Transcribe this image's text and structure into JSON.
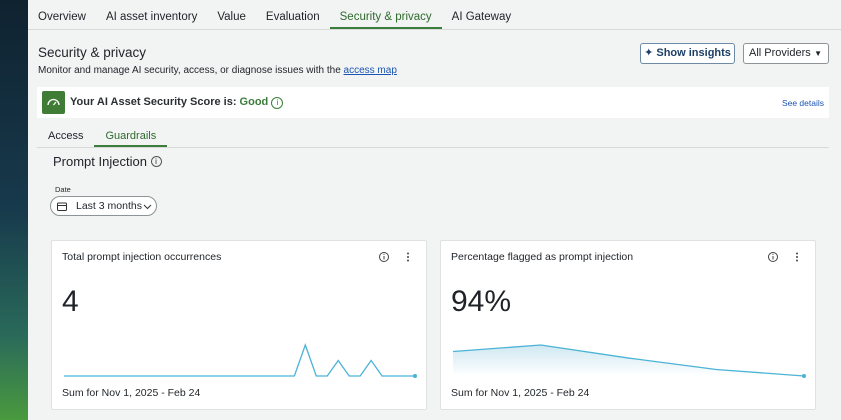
{
  "nav": {
    "tabs": [
      "Overview",
      "AI asset inventory",
      "Value",
      "Evaluation",
      "Security & privacy",
      "AI Gateway"
    ],
    "active": 4
  },
  "header": {
    "title": "Security & privacy",
    "subtitle": "Monitor and manage AI security, access, or diagnose issues with the",
    "link": "access map",
    "insights_button": "Show insights",
    "provider_select": "All Providers"
  },
  "score": {
    "label": "Your AI Asset Security Score is:",
    "value": "Good",
    "details": "See details"
  },
  "subtabs": {
    "tabs": [
      "Access",
      "Guardrails"
    ],
    "active": 1
  },
  "section": {
    "title": "Prompt Injection",
    "date_label": "Date",
    "date_value": "Last 3 months"
  },
  "cards": [
    {
      "title": "Total prompt injection occurrences",
      "value": "4",
      "footer": "Sum for Nov 1, 2025 - Feb 24",
      "sparkline": [
        0,
        0,
        0,
        0,
        0,
        0,
        0,
        0,
        0,
        0,
        0,
        0,
        0,
        0,
        0,
        0,
        0,
        0,
        0,
        0,
        0,
        0,
        2,
        0,
        0,
        1,
        0,
        0,
        1,
        0,
        0,
        0,
        0
      ]
    },
    {
      "title": "Percentage flagged as prompt injection",
      "value": "94%",
      "footer": "Sum for Nov 1, 2025 - Feb 24",
      "sparkline": [
        90,
        94,
        86,
        79,
        75
      ]
    }
  ]
}
